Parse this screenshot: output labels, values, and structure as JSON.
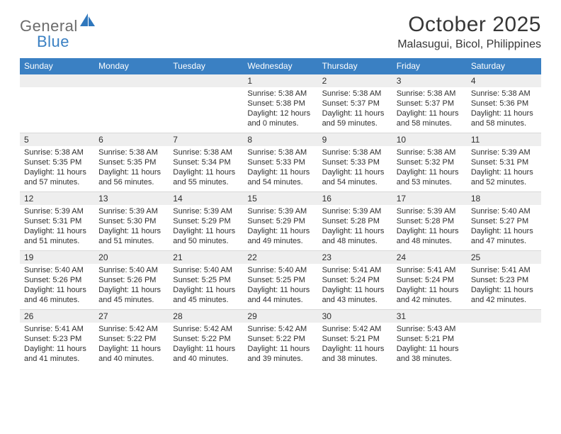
{
  "logo": {
    "text1": "General",
    "text2": "Blue",
    "icon_color": "#2f77bd"
  },
  "title": "October 2025",
  "location": "Malasugui, Bicol, Philippines",
  "colors": {
    "header_bg": "#3a80c3",
    "header_fg": "#ffffff",
    "daynum_bg": "#eeeeee",
    "text": "#2e2e2e",
    "rule": "#d9d9d9"
  },
  "weekdays": [
    "Sunday",
    "Monday",
    "Tuesday",
    "Wednesday",
    "Thursday",
    "Friday",
    "Saturday"
  ],
  "weeks": [
    [
      {
        "n": "",
        "lines": []
      },
      {
        "n": "",
        "lines": []
      },
      {
        "n": "",
        "lines": []
      },
      {
        "n": "1",
        "lines": [
          "Sunrise: 5:38 AM",
          "Sunset: 5:38 PM",
          "Daylight: 12 hours and 0 minutes."
        ]
      },
      {
        "n": "2",
        "lines": [
          "Sunrise: 5:38 AM",
          "Sunset: 5:37 PM",
          "Daylight: 11 hours and 59 minutes."
        ]
      },
      {
        "n": "3",
        "lines": [
          "Sunrise: 5:38 AM",
          "Sunset: 5:37 PM",
          "Daylight: 11 hours and 58 minutes."
        ]
      },
      {
        "n": "4",
        "lines": [
          "Sunrise: 5:38 AM",
          "Sunset: 5:36 PM",
          "Daylight: 11 hours and 58 minutes."
        ]
      }
    ],
    [
      {
        "n": "5",
        "lines": [
          "Sunrise: 5:38 AM",
          "Sunset: 5:35 PM",
          "Daylight: 11 hours and 57 minutes."
        ]
      },
      {
        "n": "6",
        "lines": [
          "Sunrise: 5:38 AM",
          "Sunset: 5:35 PM",
          "Daylight: 11 hours and 56 minutes."
        ]
      },
      {
        "n": "7",
        "lines": [
          "Sunrise: 5:38 AM",
          "Sunset: 5:34 PM",
          "Daylight: 11 hours and 55 minutes."
        ]
      },
      {
        "n": "8",
        "lines": [
          "Sunrise: 5:38 AM",
          "Sunset: 5:33 PM",
          "Daylight: 11 hours and 54 minutes."
        ]
      },
      {
        "n": "9",
        "lines": [
          "Sunrise: 5:38 AM",
          "Sunset: 5:33 PM",
          "Daylight: 11 hours and 54 minutes."
        ]
      },
      {
        "n": "10",
        "lines": [
          "Sunrise: 5:38 AM",
          "Sunset: 5:32 PM",
          "Daylight: 11 hours and 53 minutes."
        ]
      },
      {
        "n": "11",
        "lines": [
          "Sunrise: 5:39 AM",
          "Sunset: 5:31 PM",
          "Daylight: 11 hours and 52 minutes."
        ]
      }
    ],
    [
      {
        "n": "12",
        "lines": [
          "Sunrise: 5:39 AM",
          "Sunset: 5:31 PM",
          "Daylight: 11 hours and 51 minutes."
        ]
      },
      {
        "n": "13",
        "lines": [
          "Sunrise: 5:39 AM",
          "Sunset: 5:30 PM",
          "Daylight: 11 hours and 51 minutes."
        ]
      },
      {
        "n": "14",
        "lines": [
          "Sunrise: 5:39 AM",
          "Sunset: 5:29 PM",
          "Daylight: 11 hours and 50 minutes."
        ]
      },
      {
        "n": "15",
        "lines": [
          "Sunrise: 5:39 AM",
          "Sunset: 5:29 PM",
          "Daylight: 11 hours and 49 minutes."
        ]
      },
      {
        "n": "16",
        "lines": [
          "Sunrise: 5:39 AM",
          "Sunset: 5:28 PM",
          "Daylight: 11 hours and 48 minutes."
        ]
      },
      {
        "n": "17",
        "lines": [
          "Sunrise: 5:39 AM",
          "Sunset: 5:28 PM",
          "Daylight: 11 hours and 48 minutes."
        ]
      },
      {
        "n": "18",
        "lines": [
          "Sunrise: 5:40 AM",
          "Sunset: 5:27 PM",
          "Daylight: 11 hours and 47 minutes."
        ]
      }
    ],
    [
      {
        "n": "19",
        "lines": [
          "Sunrise: 5:40 AM",
          "Sunset: 5:26 PM",
          "Daylight: 11 hours and 46 minutes."
        ]
      },
      {
        "n": "20",
        "lines": [
          "Sunrise: 5:40 AM",
          "Sunset: 5:26 PM",
          "Daylight: 11 hours and 45 minutes."
        ]
      },
      {
        "n": "21",
        "lines": [
          "Sunrise: 5:40 AM",
          "Sunset: 5:25 PM",
          "Daylight: 11 hours and 45 minutes."
        ]
      },
      {
        "n": "22",
        "lines": [
          "Sunrise: 5:40 AM",
          "Sunset: 5:25 PM",
          "Daylight: 11 hours and 44 minutes."
        ]
      },
      {
        "n": "23",
        "lines": [
          "Sunrise: 5:41 AM",
          "Sunset: 5:24 PM",
          "Daylight: 11 hours and 43 minutes."
        ]
      },
      {
        "n": "24",
        "lines": [
          "Sunrise: 5:41 AM",
          "Sunset: 5:24 PM",
          "Daylight: 11 hours and 42 minutes."
        ]
      },
      {
        "n": "25",
        "lines": [
          "Sunrise: 5:41 AM",
          "Sunset: 5:23 PM",
          "Daylight: 11 hours and 42 minutes."
        ]
      }
    ],
    [
      {
        "n": "26",
        "lines": [
          "Sunrise: 5:41 AM",
          "Sunset: 5:23 PM",
          "Daylight: 11 hours and 41 minutes."
        ]
      },
      {
        "n": "27",
        "lines": [
          "Sunrise: 5:42 AM",
          "Sunset: 5:22 PM",
          "Daylight: 11 hours and 40 minutes."
        ]
      },
      {
        "n": "28",
        "lines": [
          "Sunrise: 5:42 AM",
          "Sunset: 5:22 PM",
          "Daylight: 11 hours and 40 minutes."
        ]
      },
      {
        "n": "29",
        "lines": [
          "Sunrise: 5:42 AM",
          "Sunset: 5:22 PM",
          "Daylight: 11 hours and 39 minutes."
        ]
      },
      {
        "n": "30",
        "lines": [
          "Sunrise: 5:42 AM",
          "Sunset: 5:21 PM",
          "Daylight: 11 hours and 38 minutes."
        ]
      },
      {
        "n": "31",
        "lines": [
          "Sunrise: 5:43 AM",
          "Sunset: 5:21 PM",
          "Daylight: 11 hours and 38 minutes."
        ]
      },
      {
        "n": "",
        "lines": []
      }
    ]
  ]
}
